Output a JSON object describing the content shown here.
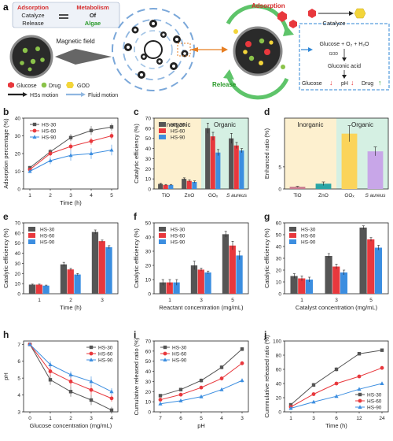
{
  "schematic": {
    "letter": "a",
    "equation": {
      "adsorption": "Adsorption",
      "metabolism": "Metabolism",
      "catalyze": "Catalyze",
      "of": "Of",
      "release": "Release",
      "algae": "Algae"
    },
    "magnetic_field": "Magnetic field",
    "adsorption_label": "Adsorption",
    "release_label": "Release",
    "catalyze_label": "Catalyze",
    "reaction": "Glucose + O₂ + H₂O",
    "god_small": "GOD",
    "gluconic": "Gluconic acid",
    "result": {
      "glucose": "Glucose",
      "ph": "pH",
      "drug": "Drug"
    },
    "legend": {
      "glucose": "Glucose",
      "drug": "Drug",
      "god": "GOD",
      "hss": "HSs motion",
      "fluid": "Fluid motion"
    }
  },
  "colors": {
    "hs30": "#555555",
    "hs60": "#e8383d",
    "hs90": "#3c8ee0",
    "inorganic_bg": "#fdf0cf",
    "organic_bg": "#d5f0e3"
  },
  "panels": [
    {
      "id": "b",
      "letter": "b",
      "type": "line",
      "ylabel": "Adsorption percentage (%)",
      "xlabel": "Time (h)",
      "xticks": [
        "1",
        "2",
        "3",
        "4",
        "5"
      ],
      "yticks": [
        "0",
        "10",
        "20",
        "30",
        "40"
      ],
      "ylim": [
        0,
        40
      ],
      "legend": [
        "HS-30",
        "HS-60",
        "HS-90"
      ],
      "series": [
        {
          "name": "HS-30",
          "values": [
            12,
            21,
            29,
            33,
            35
          ],
          "err": [
            1,
            1.5,
            2,
            2.5,
            2
          ]
        },
        {
          "name": "HS-60",
          "values": [
            11,
            20,
            24,
            27,
            30
          ],
          "err": [
            1,
            1.5,
            2,
            2,
            2
          ]
        },
        {
          "name": "HS-90",
          "values": [
            10,
            16,
            19,
            20,
            22
          ],
          "err": [
            1,
            2,
            3,
            3,
            3
          ]
        }
      ]
    },
    {
      "id": "c",
      "letter": "c",
      "type": "bar",
      "ylabel": "Catalytic efficiency (%)",
      "ylim": [
        0,
        70
      ],
      "yticks": [
        "0",
        "10",
        "20",
        "30",
        "40",
        "50",
        "60",
        "70"
      ],
      "inorganic": "Inorganic",
      "organic": "Organic",
      "categories": [
        "TiO",
        "ZnO",
        "GOₓ",
        "S aureus"
      ],
      "legend": [
        "HS-30",
        "HS-60",
        "HS-90"
      ],
      "series": [
        {
          "name": "HS-30",
          "values": [
            5,
            10,
            60,
            50
          ],
          "err": [
            0.5,
            1,
            5,
            5
          ]
        },
        {
          "name": "HS-60",
          "values": [
            4,
            8,
            52,
            43
          ],
          "err": [
            0.5,
            1,
            4,
            3
          ]
        },
        {
          "name": "HS-90",
          "values": [
            4,
            7,
            36,
            38
          ],
          "err": [
            0.5,
            1,
            3,
            2
          ]
        }
      ]
    },
    {
      "id": "d",
      "letter": "d",
      "type": "bar-single",
      "ylabel": "Enhanced ratio (%)",
      "ylim": [
        0,
        16
      ],
      "yticks": [
        "0",
        "5"
      ],
      "inorganic": "Inorganic",
      "organic": "Organic",
      "categories": [
        "TiO",
        "ZnO",
        "GOₓ",
        "S aureus"
      ],
      "values": [
        0.5,
        1.2,
        12.5,
        8.5
      ],
      "err": [
        0.1,
        0.4,
        1.8,
        1.0
      ],
      "bar_colors": [
        "#c77b8e",
        "#2aa6a6",
        "#fbd45a",
        "#c8a6e8"
      ]
    },
    {
      "id": "e",
      "letter": "e",
      "type": "bar",
      "ylabel": "Catalytic efficiency (%)",
      "xlabel": "Time (h)",
      "ylim": [
        0,
        70
      ],
      "yticks": [
        "0",
        "10",
        "20",
        "30",
        "40",
        "50",
        "60",
        "70"
      ],
      "categories": [
        "1",
        "2",
        "3"
      ],
      "legend": [
        "HS-30",
        "HS-60",
        "HS-90"
      ],
      "series": [
        {
          "name": "HS-30",
          "values": [
            9,
            29,
            61
          ],
          "err": [
            0.5,
            2,
            2
          ]
        },
        {
          "name": "HS-60",
          "values": [
            9,
            24,
            52
          ],
          "err": [
            0.5,
            1,
            1
          ]
        },
        {
          "name": "HS-90",
          "values": [
            8,
            19,
            46
          ],
          "err": [
            0.5,
            1,
            1.5
          ]
        }
      ]
    },
    {
      "id": "f",
      "letter": "f",
      "type": "bar",
      "ylabel": "Catalytic efficiency (%)",
      "xlabel": "Reactant  concentration (mg/mL)",
      "ylim": [
        0,
        50
      ],
      "yticks": [
        "0",
        "10",
        "20",
        "30",
        "40",
        "50"
      ],
      "categories": [
        "1",
        "3",
        "5"
      ],
      "legend": [
        "HS-30",
        "HS-60",
        "HS-90"
      ],
      "series": [
        {
          "name": "HS-30",
          "values": [
            8,
            20,
            42
          ],
          "err": [
            2,
            3,
            2
          ]
        },
        {
          "name": "HS-60",
          "values": [
            8,
            17,
            34
          ],
          "err": [
            2,
            1,
            3
          ]
        },
        {
          "name": "HS-90",
          "values": [
            8,
            15,
            27
          ],
          "err": [
            2,
            1,
            3
          ]
        }
      ]
    },
    {
      "id": "g",
      "letter": "g",
      "type": "bar",
      "ylabel": "Catalytic efficiency (%)",
      "xlabel": "Catalyst  concentration (mg/mL)",
      "ylim": [
        0,
        60
      ],
      "yticks": [
        "0",
        "10",
        "20",
        "30",
        "40",
        "50",
        "60"
      ],
      "categories": [
        "1",
        "3",
        "5"
      ],
      "legend": [
        "HS-30",
        "HS-60",
        "HS-90"
      ],
      "series": [
        {
          "name": "HS-30",
          "values": [
            15,
            32,
            56
          ],
          "err": [
            2,
            2,
            1.5
          ]
        },
        {
          "name": "HS-60",
          "values": [
            13,
            23,
            46
          ],
          "err": [
            2,
            2,
            1.5
          ]
        },
        {
          "name": "HS-90",
          "values": [
            12,
            18,
            39
          ],
          "err": [
            2,
            2,
            2
          ]
        }
      ]
    },
    {
      "id": "h",
      "letter": "h",
      "type": "line",
      "ylabel": "pH",
      "xlabel": "Glucose concentration (mg/mL)",
      "xticks": [
        "0",
        "1",
        "2",
        "3",
        "4"
      ],
      "yticks": [
        "3",
        "4",
        "5",
        "6",
        "7"
      ],
      "ylim": [
        3,
        7.2
      ],
      "legend": [
        "HS-30",
        "HS-60",
        "HS-90"
      ],
      "series": [
        {
          "name": "HS-30",
          "values": [
            7.0,
            4.9,
            4.2,
            3.7,
            3.1
          ],
          "err": [
            0.1,
            0.3,
            0.3,
            0.3,
            0.2
          ]
        },
        {
          "name": "HS-60",
          "values": [
            7.0,
            5.4,
            4.8,
            4.3,
            3.8
          ],
          "err": [
            0.1,
            0.3,
            0.3,
            0.3,
            0.2
          ]
        },
        {
          "name": "HS-90",
          "values": [
            7.0,
            5.8,
            5.2,
            4.8,
            4.2
          ],
          "err": [
            0.1,
            0.2,
            0.2,
            0.3,
            0.2
          ]
        }
      ]
    },
    {
      "id": "i",
      "letter": "i",
      "type": "line",
      "ylabel": "Cumulative released ratio (%)",
      "xlabel": "pH",
      "xticks": [
        "7",
        "6",
        "5",
        "4",
        "3"
      ],
      "yticks": [
        "0",
        "10",
        "20",
        "30",
        "40",
        "50",
        "60",
        "70"
      ],
      "ylim": [
        0,
        70
      ],
      "legend": [
        "HS-30",
        "HS-60",
        "HS-90"
      ],
      "series": [
        {
          "name": "HS-30",
          "values": [
            16,
            22,
            31,
            44,
            62
          ],
          "err": [
            1,
            1.5,
            2,
            2,
            2
          ]
        },
        {
          "name": "HS-60",
          "values": [
            12,
            17,
            24,
            33,
            48
          ],
          "err": [
            1,
            1.5,
            1.5,
            2,
            2
          ]
        },
        {
          "name": "HS-90",
          "values": [
            8,
            11,
            15,
            22,
            31
          ],
          "err": [
            1,
            1,
            1,
            1.5,
            2
          ]
        }
      ]
    },
    {
      "id": "j",
      "letter": "j",
      "type": "line",
      "ylabel": "Cummulative released ratio (%)",
      "xlabel": "Time (h)",
      "xticks": [
        "1",
        "3",
        "6",
        "12",
        "24"
      ],
      "yticks": [
        "0",
        "20",
        "40",
        "60",
        "80",
        "100"
      ],
      "ylim": [
        0,
        100
      ],
      "legend": [
        "HS-30",
        "HS-60",
        "HS-90"
      ],
      "series": [
        {
          "name": "HS-30",
          "values": [
            10,
            38,
            60,
            82,
            87
          ],
          "err": [
            2,
            3,
            3,
            2,
            2
          ]
        },
        {
          "name": "HS-60",
          "values": [
            7,
            25,
            40,
            50,
            62
          ],
          "err": [
            2,
            2,
            2,
            2,
            2
          ]
        },
        {
          "name": "HS-90",
          "values": [
            5,
            14,
            22,
            32,
            40
          ],
          "err": [
            1,
            1.5,
            2,
            2,
            2
          ]
        }
      ]
    }
  ]
}
